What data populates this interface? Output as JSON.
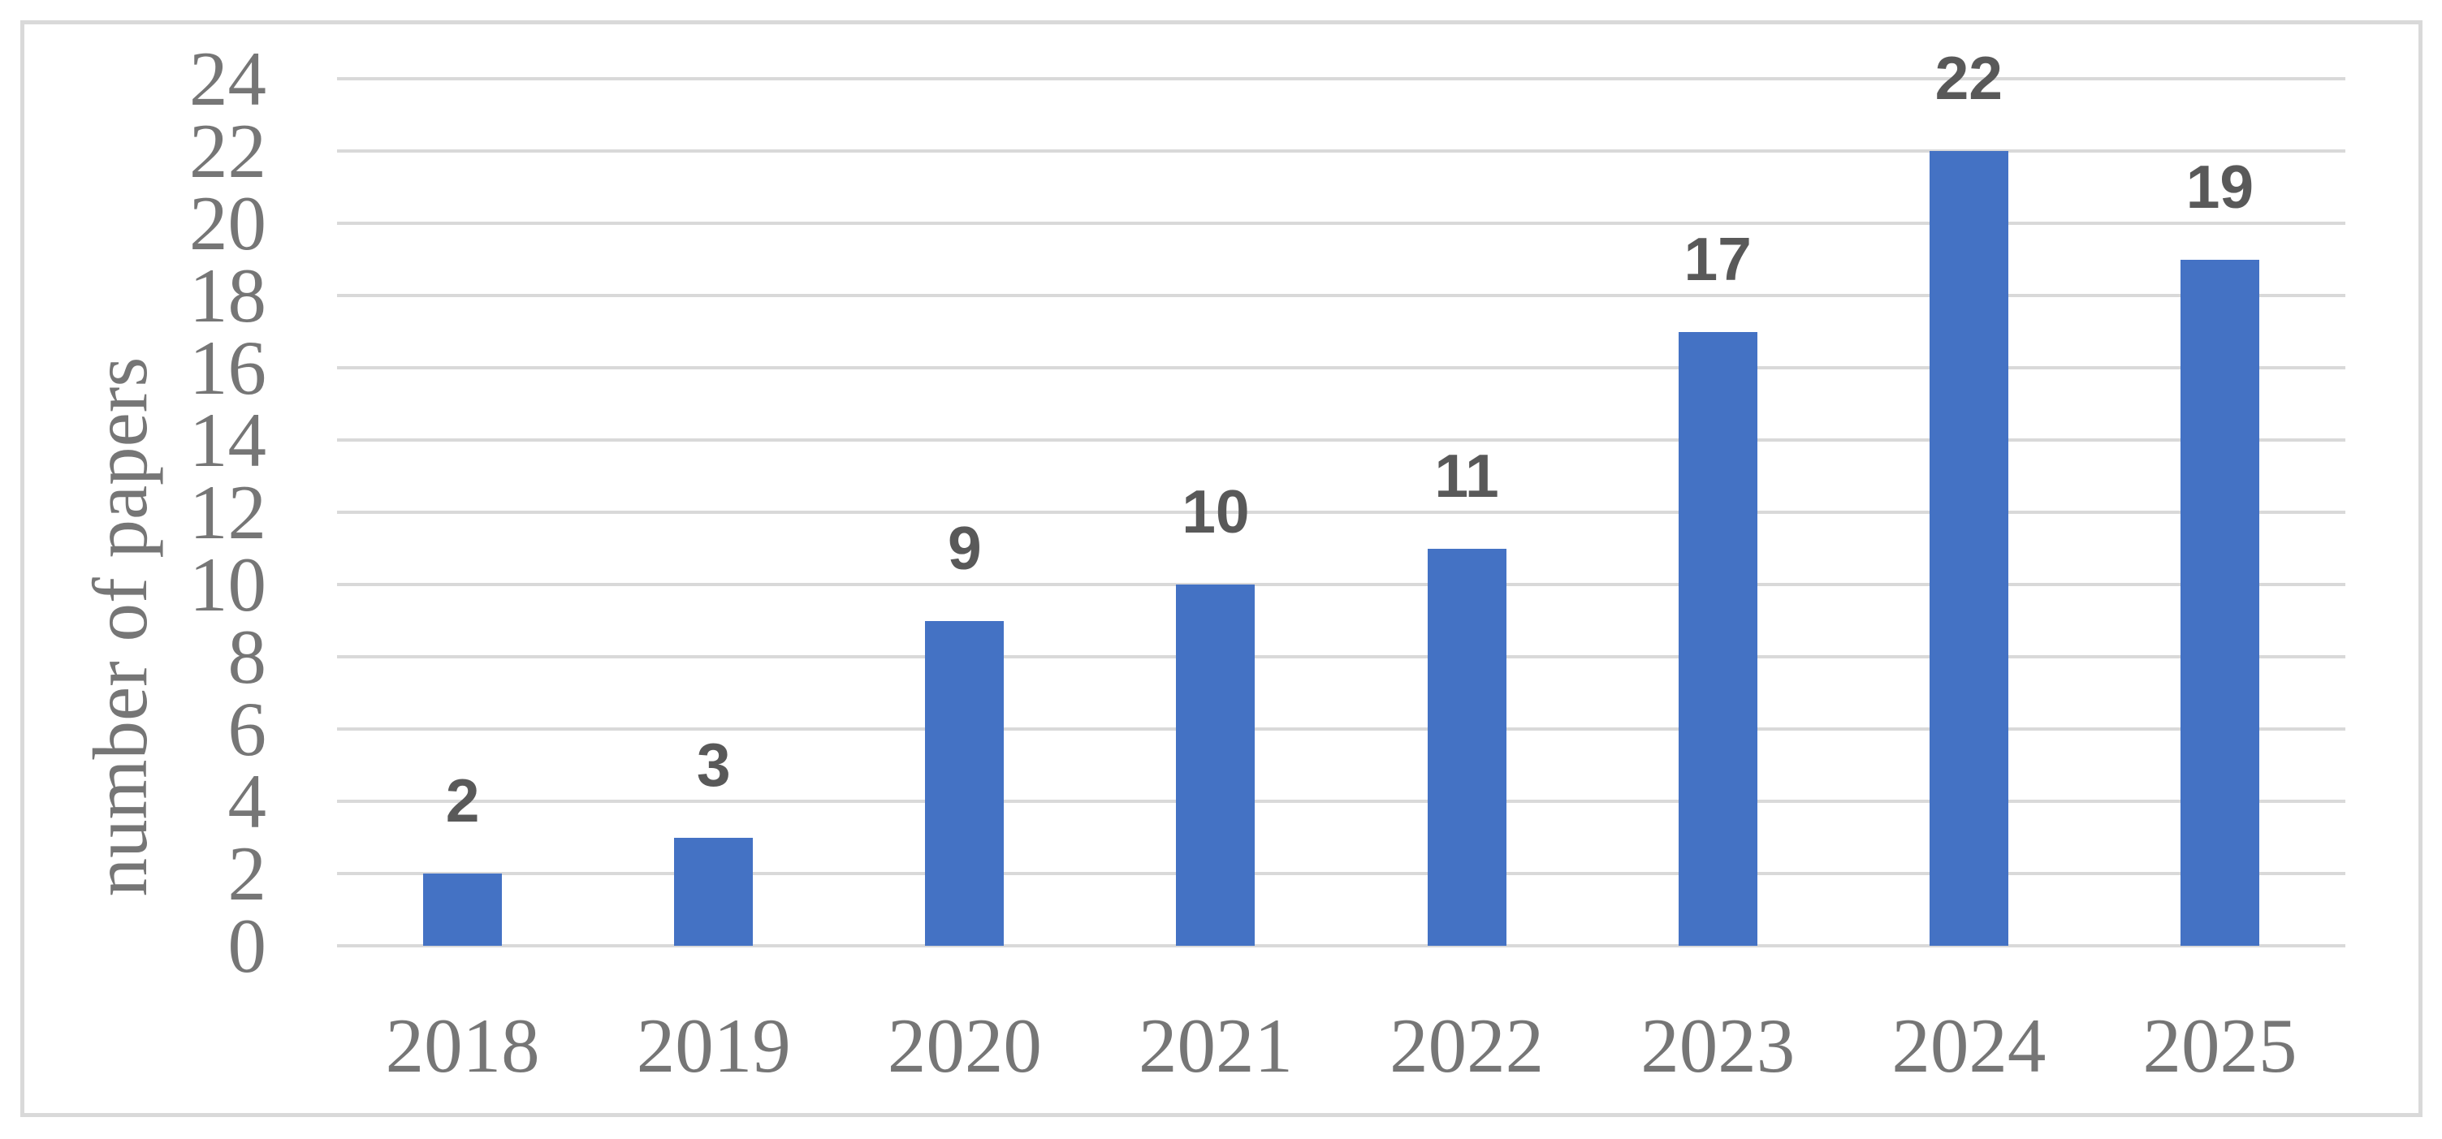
{
  "chart_data": {
    "type": "bar",
    "title": "",
    "categories": [
      "2018",
      "2019",
      "2020",
      "2021",
      "2022",
      "2023",
      "2024",
      "2025"
    ],
    "values": [
      2,
      3,
      9,
      10,
      11,
      17,
      22,
      19
    ],
    "xlabel": "",
    "ylabel": "number of papers",
    "ylim": [
      0,
      24
    ],
    "ytick_step": 2,
    "yticks": [
      0,
      2,
      4,
      6,
      8,
      10,
      12,
      14,
      16,
      18,
      20,
      22,
      24
    ],
    "grid": "horizontal",
    "legend": "none",
    "data_labels_visible": true
  },
  "style": {
    "bar_color": "#4472c4",
    "gridline_color": "#d9d9d9",
    "border_color": "#d9d9d9",
    "tick_label_color": "#767676",
    "data_label_color": "#595959",
    "background": "#ffffff"
  }
}
